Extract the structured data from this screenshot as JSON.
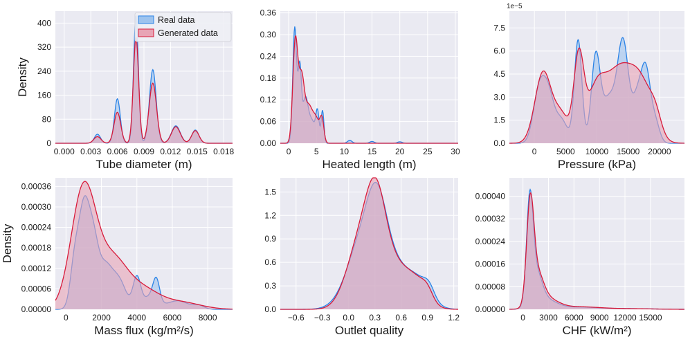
{
  "colors": {
    "real": "#2b83e6",
    "real_fill": "#9dc3ee",
    "generated": "#d81b3b",
    "generated_fill": "#e8a4b5",
    "panel_bg": "#eaeaf2",
    "grid": "#ffffff"
  },
  "legend": {
    "real": "Real data",
    "generated": "Generated data"
  },
  "chart_data": [
    {
      "type": "area",
      "id": "tube",
      "xlabel": "Tube diameter (m)",
      "ylabel": "Density",
      "xlim": [
        -0.001,
        0.019
      ],
      "ylim": [
        0,
        440
      ],
      "xticks": [
        0.0,
        0.003,
        0.006,
        0.009,
        0.012,
        0.015,
        0.018
      ],
      "xtick_labels": [
        "0.000",
        "0.003",
        "0.006",
        "0.009",
        "0.012",
        "0.015",
        "0.018"
      ],
      "yticks": [
        0,
        80,
        160,
        240,
        320,
        400
      ],
      "ytick_labels": [
        "0",
        "80",
        "160",
        "240",
        "320",
        "400"
      ],
      "series": [
        {
          "name": "Real data",
          "peaks": [
            [
              0.00375,
              30,
              0.00035
            ],
            [
              0.006,
              148,
              0.00033
            ],
            [
              0.0081,
              425,
              0.00027
            ],
            [
              0.01,
              245,
              0.00038
            ],
            [
              0.0126,
              58,
              0.0005
            ],
            [
              0.0148,
              44,
              0.0004
            ]
          ]
        },
        {
          "name": "Generated data",
          "peaks": [
            [
              0.00375,
              22,
              0.0004
            ],
            [
              0.006,
              103,
              0.00038
            ],
            [
              0.0081,
              352,
              0.0003
            ],
            [
              0.01,
              200,
              0.00042
            ],
            [
              0.0126,
              55,
              0.0005
            ],
            [
              0.0148,
              42,
              0.00042
            ]
          ]
        }
      ]
    },
    {
      "type": "area",
      "id": "heated",
      "xlabel": "Heated length (m)",
      "ylabel": "",
      "xlim": [
        -1.5,
        30.5
      ],
      "ylim": [
        0,
        0.365
      ],
      "xticks": [
        0,
        5,
        10,
        15,
        20,
        25,
        30
      ],
      "xtick_labels": [
        "0",
        "5",
        "10",
        "15",
        "20",
        "25",
        "30"
      ],
      "yticks": [
        0,
        0.06,
        0.12,
        0.18,
        0.24,
        0.3,
        0.36
      ],
      "ytick_labels": [
        "0.00",
        "0.06",
        "0.12",
        "0.18",
        "0.24",
        "0.30",
        "0.36"
      ],
      "series": [
        {
          "name": "Real data",
          "peaks": [
            [
              1.1,
              0.32,
              0.35
            ],
            [
              2.0,
              0.2,
              0.3
            ],
            [
              3.0,
              0.12,
              0.5
            ],
            [
              4.2,
              0.06,
              0.6
            ],
            [
              5.2,
              0.08,
              0.3
            ],
            [
              6.1,
              0.09,
              0.25
            ],
            [
              11,
              0.008,
              0.4
            ],
            [
              15,
              0.005,
              0.4
            ],
            [
              20,
              0.004,
              0.4
            ]
          ]
        },
        {
          "name": "Generated data",
          "peaks": [
            [
              1.2,
              0.28,
              0.45
            ],
            [
              2.3,
              0.17,
              0.5
            ],
            [
              3.6,
              0.1,
              0.7
            ],
            [
              5.0,
              0.06,
              0.6
            ],
            [
              6.0,
              0.06,
              0.35
            ]
          ]
        }
      ]
    },
    {
      "type": "area",
      "id": "pressure",
      "xlabel": "Pressure (kPa)",
      "ylabel": "",
      "sci_label": "1e−5",
      "xlim": [
        -4000,
        24000
      ],
      "ylim": [
        0,
        8.6
      ],
      "xticks": [
        0,
        5000,
        10000,
        15000,
        20000
      ],
      "xtick_labels": [
        "0",
        "5000",
        "10000",
        "15000",
        "20000"
      ],
      "yticks": [
        0,
        1.5,
        3.0,
        4.5,
        6.0,
        7.5
      ],
      "ytick_labels": [
        "0.0",
        "1.5",
        "3.0",
        "4.5",
        "6.0",
        "7.5"
      ],
      "series": [
        {
          "name": "Real data",
          "peaks": [
            [
              700,
              3.2,
              900
            ],
            [
              2200,
              3.0,
              900
            ],
            [
              4300,
              1.5,
              1000
            ],
            [
              7000,
              6.7,
              600
            ],
            [
              9800,
              5.4,
              700
            ],
            [
              12000,
              3.0,
              1200
            ],
            [
              14200,
              6.2,
              850
            ],
            [
              16600,
              3.2,
              900
            ],
            [
              17900,
              3.8,
              700
            ],
            [
              19300,
              1.4,
              700
            ]
          ]
        },
        {
          "name": "Generated data",
          "peaks": [
            [
              1400,
              4.6,
              1300
            ],
            [
              4300,
              1.8,
              1200
            ],
            [
              7100,
              5.4,
              800
            ],
            [
              9800,
              3.0,
              1500
            ],
            [
              13500,
              4.6,
              2200
            ],
            [
              17200,
              3.3,
              1800
            ],
            [
              19400,
              1.0,
              900
            ]
          ]
        }
      ]
    },
    {
      "type": "area",
      "id": "massflux",
      "xlabel": "Mass flux (kg/m²/s)",
      "ylabel": "Density",
      "xlim": [
        -600,
        9400
      ],
      "ylim": [
        0,
        0.000385
      ],
      "xticks": [
        0,
        2000,
        4000,
        6000,
        8000
      ],
      "xtick_labels": [
        "0",
        "2000",
        "4000",
        "6000",
        "8000"
      ],
      "yticks": [
        0,
        6e-05,
        0.00012,
        0.00018,
        0.00024,
        0.0003,
        0.00036
      ],
      "ytick_labels": [
        "0.00000",
        "0.00006",
        "0.00012",
        "0.00018",
        "0.00024",
        "0.00030",
        "0.00036"
      ],
      "series": [
        {
          "name": "Real data",
          "peaks": [
            [
              500,
              0.00014,
              250
            ],
            [
              1000,
              0.00026,
              280
            ],
            [
              1500,
              0.00019,
              300
            ],
            [
              2200,
              0.00012,
              400
            ],
            [
              3000,
              8e-05,
              400
            ],
            [
              4000,
              9e-05,
              220
            ],
            [
              4800,
              4e-05,
              400
            ],
            [
              5100,
              6e-05,
              180
            ],
            [
              6300,
              2.5e-05,
              600
            ],
            [
              7500,
              1e-05,
              300
            ]
          ]
        },
        {
          "name": "Generated data",
          "peaks": [
            [
              1000,
              0.000355,
              700
            ],
            [
              2600,
              0.00013,
              800
            ],
            [
              4200,
              6e-05,
              1000
            ],
            [
              6500,
              2e-05,
              1100
            ]
          ]
        }
      ]
    },
    {
      "type": "area",
      "id": "outlet",
      "xlabel": "Outlet quality",
      "ylabel": "",
      "xlim": [
        -0.78,
        1.25
      ],
      "ylim": [
        0,
        1.68
      ],
      "xticks": [
        -0.6,
        -0.3,
        0.0,
        0.3,
        0.6,
        0.9,
        1.2
      ],
      "xtick_labels": [
        "−0.6",
        "−0.3",
        "0.0",
        "0.3",
        "0.6",
        "0.9",
        "1.2"
      ],
      "yticks": [
        0,
        0.3,
        0.6,
        0.9,
        1.2,
        1.5
      ],
      "ytick_labels": [
        "0.0",
        "0.3",
        "0.6",
        "0.9",
        "1.2",
        "1.5"
      ],
      "series": [
        {
          "name": "Real data",
          "peaks": [
            [
              -0.15,
              0.03,
              0.12
            ],
            [
              0.12,
              0.75,
              0.15
            ],
            [
              0.33,
              1.25,
              0.12
            ],
            [
              0.55,
              0.38,
              0.12
            ],
            [
              0.78,
              0.38,
              0.14
            ],
            [
              0.92,
              0.12,
              0.06
            ]
          ]
        },
        {
          "name": "Generated data",
          "peaks": [
            [
              0.12,
              0.78,
              0.15
            ],
            [
              0.32,
              1.28,
              0.12
            ],
            [
              0.55,
              0.4,
              0.12
            ],
            [
              0.77,
              0.36,
              0.13
            ],
            [
              0.9,
              0.1,
              0.06
            ]
          ]
        }
      ]
    },
    {
      "type": "area",
      "id": "chf",
      "xlabel": "CHF (kW/m²)",
      "ylabel": "",
      "xlim": [
        -1600,
        19000
      ],
      "ylim": [
        0,
        0.000465
      ],
      "xticks": [
        0,
        3000,
        6000,
        9000,
        12000,
        15000
      ],
      "xtick_labels": [
        "0",
        "3000",
        "6000",
        "9000",
        "12000",
        "15000"
      ],
      "yticks": [
        0,
        8e-05,
        0.00016,
        0.00024,
        0.00032,
        0.0004
      ],
      "ytick_labels": [
        "0.00000",
        "0.00008",
        "0.00016",
        "0.00024",
        "0.00032",
        "0.00040"
      ],
      "series": [
        {
          "name": "Real data",
          "peaks": [
            [
              800,
              0.00034,
              380
            ],
            [
              1500,
              0.00012,
              700
            ],
            [
              2800,
              3e-05,
              1200
            ],
            [
              6500,
              8e-06,
              2500
            ],
            [
              13000,
              2e-06,
              2500
            ]
          ]
        },
        {
          "name": "Generated data",
          "peaks": [
            [
              850,
              0.00033,
              420
            ],
            [
              1600,
              0.00011,
              750
            ],
            [
              2800,
              3.5e-05,
              1300
            ],
            [
              6500,
              9e-06,
              2600
            ],
            [
              13000,
              2e-06,
              2500
            ]
          ]
        }
      ]
    }
  ]
}
